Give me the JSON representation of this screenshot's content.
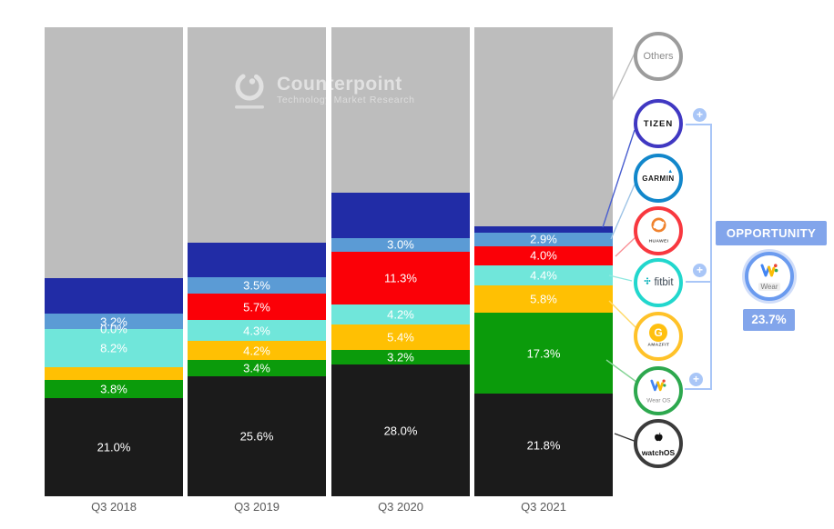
{
  "watermark": {
    "title": "Counterpoint",
    "subtitle": "Technology Market Research"
  },
  "chart_data": {
    "type": "bar",
    "stacked": true,
    "unit": "%",
    "ylim": [
      0,
      100
    ],
    "grid": false,
    "legend_position": "right",
    "categories": [
      "Q3 2018",
      "Q3 2019",
      "Q3 2020",
      "Q3 2021"
    ],
    "series": [
      {
        "name": "Others",
        "color": "#BDBDBD",
        "values": [
          53.5,
          45.9,
          35.2,
          42.4
        ],
        "labels": [
          "",
          "",
          "",
          ""
        ]
      },
      {
        "name": "Tizen",
        "color": "#212CA6",
        "values": [
          7.6,
          7.4,
          9.7,
          1.4
        ],
        "labels": [
          "",
          "",
          "",
          ""
        ]
      },
      {
        "name": "Garmin",
        "color": "#5B9BD5",
        "values": [
          3.2,
          3.5,
          3.0,
          2.9
        ],
        "labels": [
          "3.2%",
          "3.5%",
          "3.0%",
          "2.9%"
        ]
      },
      {
        "name": "Huawei",
        "color": "#FB0007",
        "values": [
          0.0,
          5.7,
          11.3,
          4.0
        ],
        "labels": [
          "0.0%",
          "5.7%",
          "11.3%",
          "4.0%"
        ]
      },
      {
        "name": "Fitbit",
        "color": "#70E6DA",
        "values": [
          8.2,
          4.3,
          4.2,
          4.4
        ],
        "labels": [
          "8.2%",
          "4.3%",
          "4.2%",
          "4.4%"
        ]
      },
      {
        "name": "Amazfit",
        "color": "#FFC003",
        "values": [
          2.7,
          4.2,
          5.4,
          5.8
        ],
        "labels": [
          "",
          "4.2%",
          "5.4%",
          "5.8%"
        ]
      },
      {
        "name": "Wear OS",
        "color": "#0B9B0B",
        "values": [
          3.8,
          3.4,
          3.2,
          17.3
        ],
        "labels": [
          "3.8%",
          "3.4%",
          "3.2%",
          "17.3%"
        ]
      },
      {
        "name": "watchOS",
        "color": "#1B1B1B",
        "values": [
          21.0,
          25.6,
          28.0,
          21.8
        ],
        "labels": [
          "21.0%",
          "25.6%",
          "28.0%",
          "21.8%"
        ]
      }
    ]
  },
  "legend": {
    "items": [
      {
        "id": "others",
        "label": "Others",
        "ring": "#9C9C9C",
        "plus": false
      },
      {
        "id": "tizen",
        "label": "TIZEN",
        "ring": "#4038C2",
        "plus": true
      },
      {
        "id": "garmin",
        "label": "GARMIN",
        "ring": "#1287CB",
        "plus": false
      },
      {
        "id": "huawei",
        "label": "HUAWEI",
        "ring": "#F8383F",
        "plus": false
      },
      {
        "id": "fitbit",
        "label": "fitbit",
        "ring": "#22D7CD",
        "plus": true
      },
      {
        "id": "amazfit",
        "label": "AMAZFIT",
        "ring": "#FFC229",
        "plus": false
      },
      {
        "id": "wearos",
        "label": "Wear OS",
        "ring": "#2DA84E",
        "plus": true
      },
      {
        "id": "watchos",
        "label": "watchOS",
        "ring": "#3B3B3B",
        "plus": false
      }
    ]
  },
  "opportunity": {
    "title": "OPPORTUNITY",
    "wear_label": "Wear",
    "value": "23.7%",
    "accent_color": "#82A5EB",
    "connector_color": "#A9C6F7"
  }
}
